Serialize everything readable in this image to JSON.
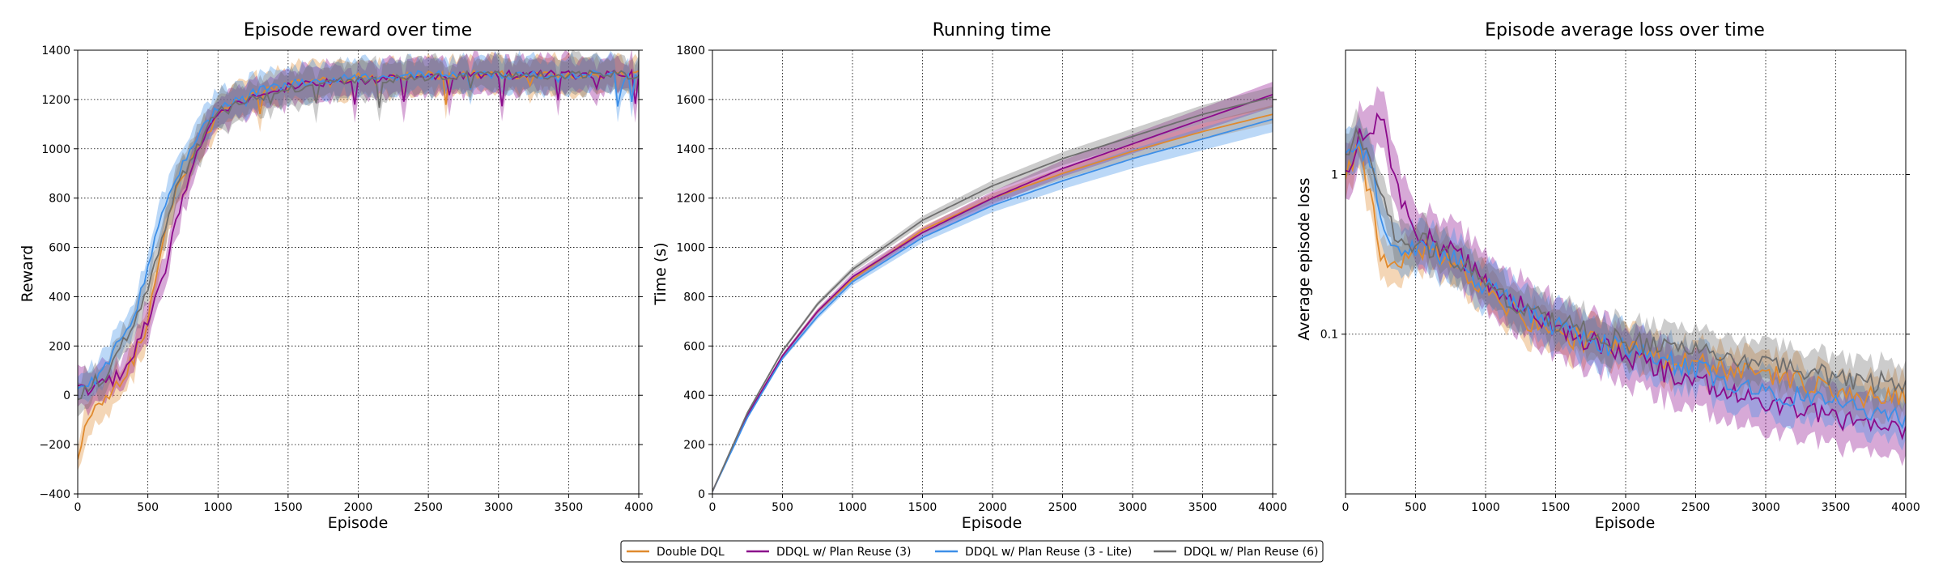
{
  "colors": {
    "double_ddql": "#e08a2e",
    "plan_reuse_3": "#8b0a8b",
    "plan_reuse_3_lite": "#3d8fe8",
    "plan_reuse_6": "#6e6e6e"
  },
  "legend": {
    "position": "bottom-center",
    "entries": [
      {
        "label": "Double DQL",
        "color_key": "double_ddql"
      },
      {
        "label": "DDQL w/ Plan Reuse (3)",
        "color_key": "plan_reuse_3"
      },
      {
        "label": "DDQL w/ Plan Reuse (3 - Lite)",
        "color_key": "plan_reuse_3_lite"
      },
      {
        "label": "DDQL w/ Plan Reuse (6)",
        "color_key": "plan_reuse_6"
      }
    ]
  },
  "chart_data": [
    {
      "type": "line",
      "title": "Episode reward over time",
      "xlabel": "Episode",
      "ylabel": "Reward",
      "xlim": [
        0,
        4000
      ],
      "ylim": [
        -400,
        1400
      ],
      "xticks": [
        0,
        500,
        1000,
        1500,
        2000,
        2500,
        3000,
        3500,
        4000
      ],
      "yticks": [
        -400,
        -200,
        0,
        200,
        400,
        600,
        800,
        1000,
        1200,
        1400
      ],
      "grid": true,
      "x": [
        0,
        100,
        200,
        300,
        400,
        500,
        600,
        700,
        800,
        900,
        1000,
        1250,
        1500,
        1750,
        2000,
        2500,
        3000,
        3500,
        4000
      ],
      "series": [
        {
          "name": "Double DQL",
          "color_key": "double_ddql",
          "values": [
            -230,
            -60,
            0,
            60,
            150,
            300,
            600,
            850,
            950,
            1050,
            1150,
            1220,
            1260,
            1280,
            1290,
            1300,
            1300,
            1300,
            1300
          ],
          "band": 45
        },
        {
          "name": "DDQL w/ Plan Reuse (3)",
          "color_key": "plan_reuse_3",
          "values": [
            20,
            30,
            40,
            80,
            180,
            300,
            450,
            700,
            900,
            1050,
            1150,
            1210,
            1250,
            1270,
            1280,
            1290,
            1300,
            1300,
            1300
          ],
          "band": 45
        },
        {
          "name": "DDQL w/ Plan Reuse (3 - Lite)",
          "color_key": "plan_reuse_3_lite",
          "values": [
            20,
            60,
            110,
            220,
            330,
            520,
            720,
            880,
            980,
            1080,
            1170,
            1230,
            1260,
            1280,
            1290,
            1300,
            1300,
            1300,
            1300
          ],
          "band": 45
        },
        {
          "name": "DDQL w/ Plan Reuse (6)",
          "color_key": "plan_reuse_6",
          "values": [
            0,
            40,
            90,
            180,
            300,
            450,
            650,
            820,
            950,
            1050,
            1150,
            1200,
            1240,
            1270,
            1280,
            1290,
            1300,
            1300,
            1300
          ],
          "band": 45
        }
      ]
    },
    {
      "type": "line",
      "title": "Running time",
      "xlabel": "Episode",
      "ylabel": "Time (s)",
      "xlim": [
        0,
        4000
      ],
      "ylim": [
        0,
        1800
      ],
      "xticks": [
        0,
        500,
        1000,
        1500,
        2000,
        2500,
        3000,
        3500,
        4000
      ],
      "yticks": [
        0,
        200,
        400,
        600,
        800,
        1000,
        1200,
        1400,
        1600,
        1800
      ],
      "grid": true,
      "x": [
        0,
        250,
        500,
        750,
        1000,
        1500,
        2000,
        2500,
        3000,
        3500,
        4000
      ],
      "series": [
        {
          "name": "Double DQL",
          "color_key": "double_ddql",
          "values": [
            10,
            320,
            560,
            740,
            870,
            1070,
            1200,
            1300,
            1390,
            1470,
            1540
          ],
          "band": 35
        },
        {
          "name": "DDQL w/ Plan Reuse (3)",
          "color_key": "plan_reuse_3",
          "values": [
            10,
            320,
            560,
            740,
            880,
            1060,
            1200,
            1320,
            1420,
            1520,
            1620
          ],
          "band": 50
        },
        {
          "name": "DDQL w/ Plan Reuse (3 - Lite)",
          "color_key": "plan_reuse_3_lite",
          "values": [
            10,
            310,
            550,
            720,
            860,
            1040,
            1170,
            1270,
            1360,
            1440,
            1520
          ],
          "band": 50
        },
        {
          "name": "DDQL w/ Plan Reuse (6)",
          "color_key": "plan_reuse_6",
          "values": [
            10,
            330,
            580,
            770,
            910,
            1110,
            1250,
            1360,
            1450,
            1540,
            1610
          ],
          "band": 40
        }
      ]
    },
    {
      "type": "line",
      "title": "Episode average loss over time",
      "xlabel": "Episode",
      "ylabel": "Average episode loss",
      "xlim": [
        0,
        4000
      ],
      "ylim": [
        0.01,
        6
      ],
      "yscale": "log",
      "xticks": [
        0,
        500,
        1000,
        1500,
        2000,
        2500,
        3000,
        3500,
        4000
      ],
      "yticks": [
        0.1,
        1
      ],
      "ytick_labels": [
        "0.1",
        "1"
      ],
      "grid": true,
      "x": [
        0,
        100,
        200,
        250,
        300,
        400,
        500,
        750,
        1000,
        1250,
        1500,
        1750,
        2000,
        2250,
        2500,
        2750,
        3000,
        3250,
        3500,
        3750,
        4000
      ],
      "series": [
        {
          "name": "Double DQL",
          "color_key": "double_ddql",
          "values": [
            1.0,
            1.4,
            0.6,
            0.3,
            0.25,
            0.3,
            0.35,
            0.3,
            0.2,
            0.13,
            0.1,
            0.09,
            0.08,
            0.07,
            0.065,
            0.06,
            0.055,
            0.05,
            0.045,
            0.04,
            0.04
          ],
          "band": 1.35
        },
        {
          "name": "DDQL w/ Plan Reuse (3)",
          "color_key": "plan_reuse_3",
          "values": [
            1.0,
            1.7,
            2.0,
            2.6,
            1.5,
            0.7,
            0.4,
            0.35,
            0.22,
            0.15,
            0.11,
            0.09,
            0.075,
            0.06,
            0.05,
            0.045,
            0.038,
            0.033,
            0.03,
            0.027,
            0.025
          ],
          "band": 1.5
        },
        {
          "name": "DDQL w/ Plan Reuse (3 - Lite)",
          "color_key": "plan_reuse_3_lite",
          "values": [
            1.2,
            1.6,
            1.0,
            0.6,
            0.4,
            0.35,
            0.35,
            0.3,
            0.2,
            0.14,
            0.11,
            0.09,
            0.08,
            0.07,
            0.06,
            0.05,
            0.045,
            0.04,
            0.035,
            0.032,
            0.03
          ],
          "band": 1.4
        },
        {
          "name": "DDQL w/ Plan Reuse (6)",
          "color_key": "plan_reuse_6",
          "values": [
            1.3,
            1.8,
            1.2,
            0.8,
            0.5,
            0.4,
            0.38,
            0.32,
            0.22,
            0.15,
            0.12,
            0.1,
            0.09,
            0.08,
            0.075,
            0.07,
            0.065,
            0.06,
            0.055,
            0.05,
            0.05
          ],
          "band": 1.35
        }
      ]
    }
  ]
}
